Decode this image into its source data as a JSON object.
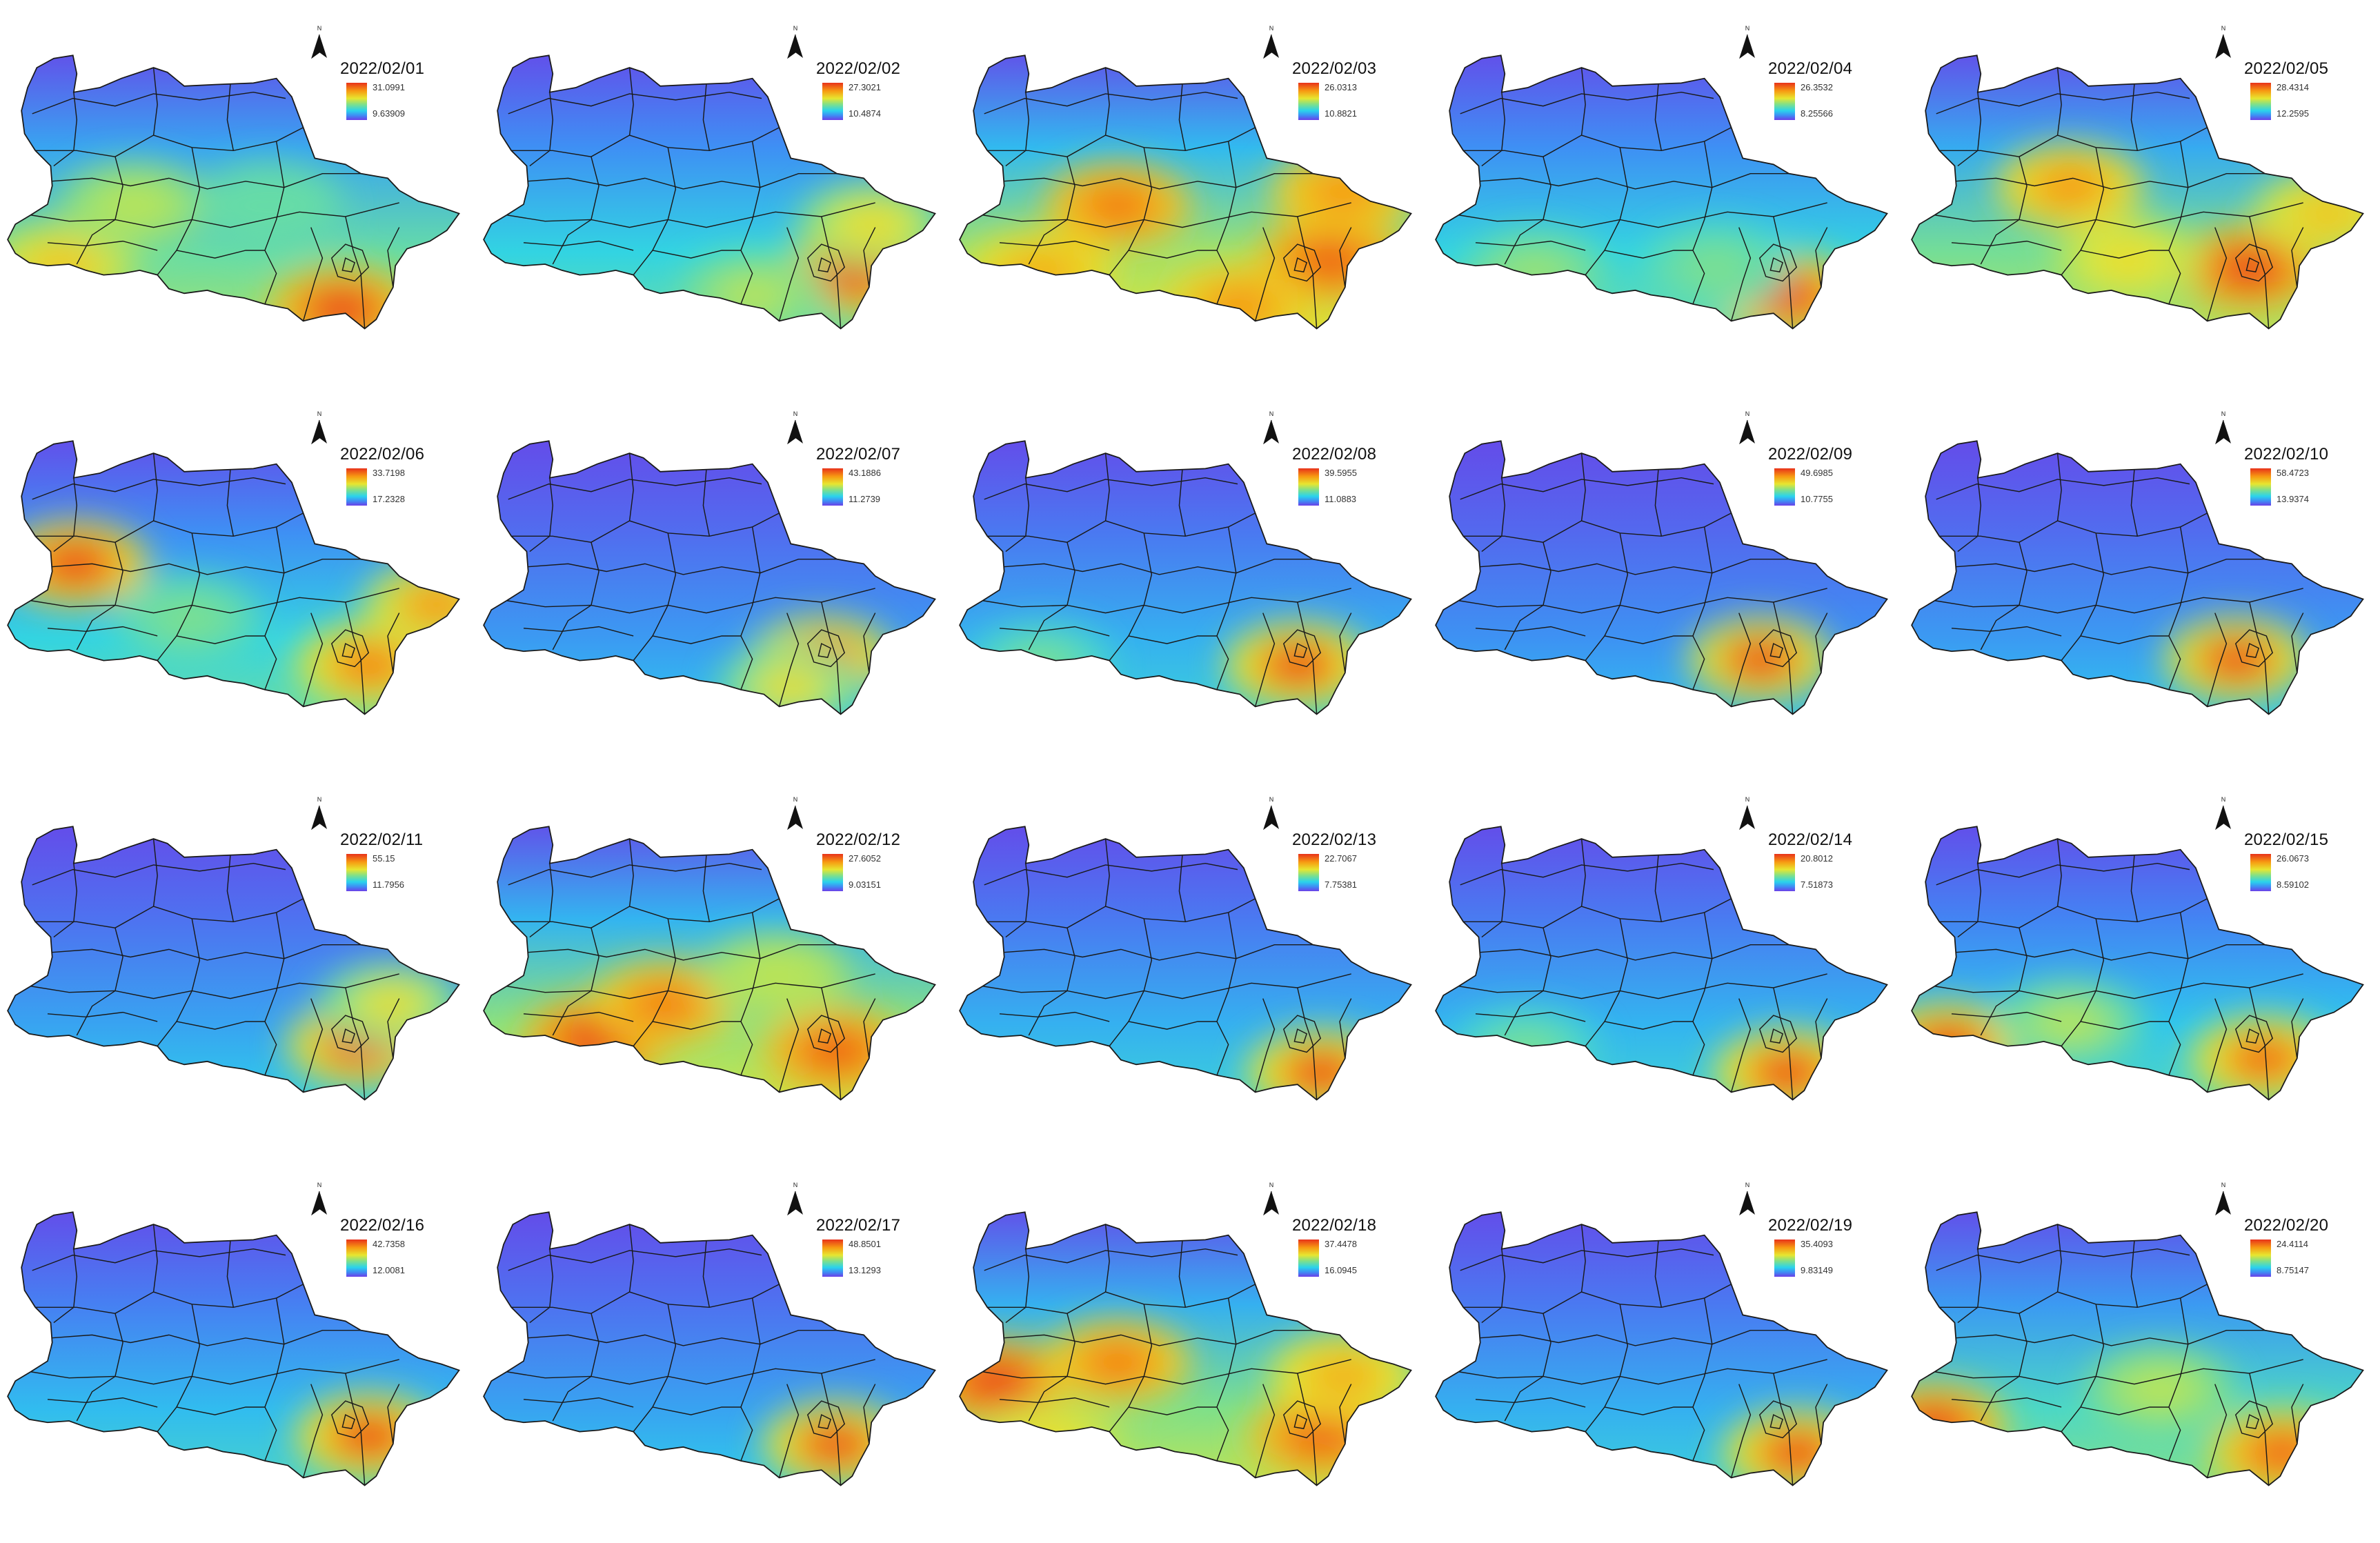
{
  "legend": {
    "palette": [
      "#e8321a",
      "#f79b12",
      "#e7e630",
      "#7fe08a",
      "#2ad3ec",
      "#3f8cf4",
      "#6b3fe8"
    ],
    "north_label": "N"
  },
  "maps": [
    {
      "date": "2022/02/01",
      "max": "31.0991",
      "min": "9.63909",
      "hot": [
        [
          0.74,
          0.93,
          1.0
        ],
        [
          0.12,
          0.77,
          0.75
        ],
        [
          0.28,
          0.55,
          0.6
        ],
        [
          0.58,
          0.55,
          0.45
        ]
      ],
      "bg": 0.45
    },
    {
      "date": "2022/02/02",
      "max": "27.3021",
      "min": "10.4874",
      "hot": [
        [
          0.82,
          0.8,
          1.0
        ],
        [
          0.86,
          0.62,
          0.7
        ],
        [
          0.6,
          0.88,
          0.6
        ]
      ],
      "bg": 0.35
    },
    {
      "date": "2022/02/03",
      "max": "26.0313",
      "min": "10.8821",
      "hot": [
        [
          0.82,
          0.75,
          0.95
        ],
        [
          0.85,
          0.5,
          0.85
        ],
        [
          0.35,
          0.55,
          0.9
        ],
        [
          0.18,
          0.8,
          0.8
        ],
        [
          0.62,
          0.92,
          0.85
        ]
      ],
      "bg": 0.55
    },
    {
      "date": "2022/02/04",
      "max": "26.3532",
      "min": "8.25566",
      "hot": [
        [
          0.78,
          0.88,
          1.0
        ],
        [
          0.22,
          0.8,
          0.55
        ],
        [
          0.62,
          0.78,
          0.5
        ]
      ],
      "bg": 0.35
    },
    {
      "date": "2022/02/05",
      "max": "28.4314",
      "min": "12.2595",
      "hot": [
        [
          0.75,
          0.78,
          1.0
        ],
        [
          0.35,
          0.48,
          0.85
        ],
        [
          0.92,
          0.58,
          0.75
        ],
        [
          0.48,
          0.75,
          0.7
        ]
      ],
      "bg": 0.48
    },
    {
      "date": "2022/02/06",
      "max": "33.7198",
      "min": "17.2328",
      "hot": [
        [
          0.15,
          0.45,
          1.0
        ],
        [
          0.8,
          0.82,
          0.9
        ],
        [
          0.95,
          0.6,
          0.85
        ],
        [
          0.4,
          0.65,
          0.5
        ]
      ],
      "bg": 0.35
    },
    {
      "date": "2022/02/07",
      "max": "43.1886",
      "min": "11.2739",
      "hot": [
        [
          0.75,
          0.8,
          1.0
        ],
        [
          0.68,
          0.9,
          0.7
        ]
      ],
      "bg": 0.2
    },
    {
      "date": "2022/02/08",
      "max": "39.5955",
      "min": "11.0883",
      "hot": [
        [
          0.75,
          0.82,
          1.0
        ],
        [
          0.18,
          0.82,
          0.5
        ]
      ],
      "bg": 0.25
    },
    {
      "date": "2022/02/09",
      "max": "49.6985",
      "min": "10.7755",
      "hot": [
        [
          0.72,
          0.8,
          1.0
        ]
      ],
      "bg": 0.18
    },
    {
      "date": "2022/02/10",
      "max": "58.4723",
      "min": "13.9374",
      "hot": [
        [
          0.72,
          0.8,
          1.0
        ]
      ],
      "bg": 0.2
    },
    {
      "date": "2022/02/11",
      "max": "55.15",
      "min": "11.7956",
      "hot": [
        [
          0.78,
          0.8,
          1.0
        ],
        [
          0.85,
          0.65,
          0.7
        ]
      ],
      "bg": 0.22
    },
    {
      "date": "2022/02/12",
      "max": "27.6052",
      "min": "9.03151",
      "hot": [
        [
          0.25,
          0.78,
          1.0
        ],
        [
          0.4,
          0.65,
          0.9
        ],
        [
          0.78,
          0.82,
          0.95
        ],
        [
          0.65,
          0.55,
          0.6
        ]
      ],
      "bg": 0.52
    },
    {
      "date": "2022/02/13",
      "max": "22.7067",
      "min": "7.75381",
      "hot": [
        [
          0.8,
          0.9,
          1.0
        ]
      ],
      "bg": 0.25
    },
    {
      "date": "2022/02/14",
      "max": "20.8012",
      "min": "7.51873",
      "hot": [
        [
          0.78,
          0.9,
          1.0
        ],
        [
          0.2,
          0.82,
          0.5
        ]
      ],
      "bg": 0.26
    },
    {
      "date": "2022/02/15",
      "max": "26.0673",
      "min": "8.59102",
      "hot": [
        [
          0.08,
          0.8,
          1.0
        ],
        [
          0.78,
          0.85,
          0.95
        ],
        [
          0.35,
          0.72,
          0.6
        ]
      ],
      "bg": 0.3
    },
    {
      "date": "2022/02/16",
      "max": "42.7358",
      "min": "12.0081",
      "hot": [
        [
          0.8,
          0.82,
          1.0
        ]
      ],
      "bg": 0.28
    },
    {
      "date": "2022/02/17",
      "max": "48.8501",
      "min": "13.1293",
      "hot": [
        [
          0.78,
          0.85,
          1.0
        ]
      ],
      "bg": 0.22
    },
    {
      "date": "2022/02/18",
      "max": "37.4478",
      "min": "16.0945",
      "hot": [
        [
          0.08,
          0.62,
          1.0
        ],
        [
          0.35,
          0.55,
          0.9
        ],
        [
          0.8,
          0.82,
          0.95
        ],
        [
          0.85,
          0.6,
          0.8
        ],
        [
          0.2,
          0.85,
          0.7
        ]
      ],
      "bg": 0.5
    },
    {
      "date": "2022/02/19",
      "max": "35.4093",
      "min": "9.83149",
      "hot": [
        [
          0.8,
          0.88,
          1.0
        ]
      ],
      "bg": 0.25
    },
    {
      "date": "2022/02/20",
      "max": "24.4114",
      "min": "8.75147",
      "hot": [
        [
          0.05,
          0.78,
          1.0
        ],
        [
          0.82,
          0.88,
          0.95
        ],
        [
          0.55,
          0.65,
          0.6
        ]
      ],
      "bg": 0.4
    }
  ]
}
